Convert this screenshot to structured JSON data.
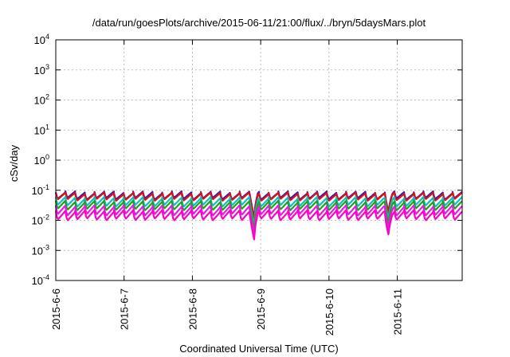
{
  "chart_data": {
    "type": "line",
    "title": "/data/run/goesPlots/archive/2015-06-11/21:00/flux/../bryn/5daysMars.plot",
    "xlabel": "Coordinated Universal Time (UTC)",
    "ylabel": "cSv/day",
    "y_scale": "log",
    "ylim": [
      0.0001,
      10000
    ],
    "y_ticks": [
      {
        "value": 0.0001,
        "base": "10",
        "exp": "-4"
      },
      {
        "value": 0.001,
        "base": "10",
        "exp": "-3"
      },
      {
        "value": 0.01,
        "base": "10",
        "exp": "-2"
      },
      {
        "value": 0.1,
        "base": "10",
        "exp": "-1"
      },
      {
        "value": 1,
        "base": "10",
        "exp": "0"
      },
      {
        "value": 10,
        "base": "10",
        "exp": "1"
      },
      {
        "value": 100,
        "base": "10",
        "exp": "2"
      },
      {
        "value": 1000,
        "base": "10",
        "exp": "3"
      },
      {
        "value": 10000,
        "base": "10",
        "exp": "4"
      }
    ],
    "xlim_days": [
      0,
      5.95
    ],
    "x_ticks": [
      {
        "label": "2015-6-6",
        "day": 0
      },
      {
        "label": "2015-6-7",
        "day": 1
      },
      {
        "label": "2015-6-8",
        "day": 2
      },
      {
        "label": "2015-6-9",
        "day": 3
      },
      {
        "label": "2015-6-10",
        "day": 4
      },
      {
        "label": "2015-6-11",
        "day": 5
      }
    ],
    "grid": true,
    "cycles_per_day": 7,
    "series": [
      {
        "color": "#1f1fd0",
        "peak": 0.092,
        "trough": 0.055
      },
      {
        "color": "#e01010",
        "peak": 0.085,
        "trough": 0.05
      },
      {
        "color": "#10c0c0",
        "peak": 0.06,
        "trough": 0.032
      },
      {
        "color": "#20a020",
        "peak": 0.045,
        "trough": 0.024
      },
      {
        "color": "#e020e0",
        "peak": 0.032,
        "trough": 0.016
      },
      {
        "color": "#ff00c8",
        "peak": 0.022,
        "trough": 0.011
      }
    ],
    "dips": [
      {
        "day": 2.9,
        "depth": 0.12
      },
      {
        "day": 4.87,
        "depth": 0.3
      }
    ]
  }
}
